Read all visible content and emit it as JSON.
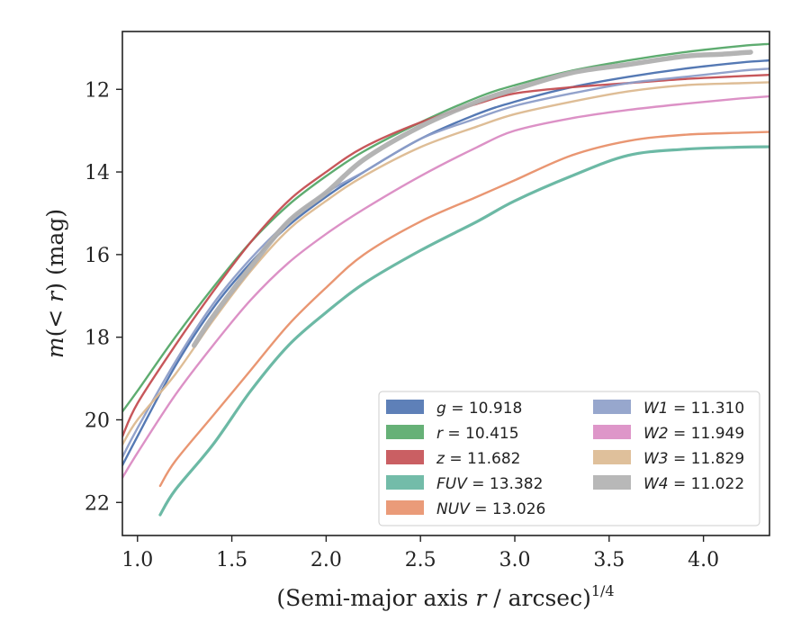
{
  "chart_data": {
    "type": "line",
    "title": "",
    "xlabel": "(Semi-major axis r / arcsec)",
    "xlabel_parts": {
      "prefix": "(Semi-major axis ",
      "var": "r",
      "suffix": " / arcsec)",
      "exponent": "1/4"
    },
    "ylabel": "m(< r) (mag)",
    "ylabel_parts": {
      "prefix": "m",
      "middle": "(< ",
      "var": "r",
      "suffix": ") (mag)"
    },
    "xlim": [
      0.92,
      4.35
    ],
    "ylim": [
      22.8,
      10.6
    ],
    "y_inverted": true,
    "xticks": [
      "1.0",
      "1.5",
      "2.0",
      "2.5",
      "3.0",
      "3.5",
      "4.0"
    ],
    "xtick_values": [
      1.0,
      1.5,
      2.0,
      2.5,
      3.0,
      3.5,
      4.0
    ],
    "yticks": [
      "12",
      "14",
      "16",
      "18",
      "20",
      "22"
    ],
    "ytick_values": [
      12,
      14,
      16,
      18,
      20,
      22
    ],
    "grid": false,
    "legend_position": "lower right",
    "legend_columns": 2,
    "series": [
      {
        "name": "g = 10.918",
        "name_var": "g",
        "name_value": "10.918",
        "color": "#4c72b0",
        "x": [
          0.92,
          1.0,
          1.2,
          1.4,
          1.6,
          1.8,
          2.0,
          2.2,
          2.5,
          2.8,
          3.0,
          3.3,
          3.6,
          3.9,
          4.2,
          4.35
        ],
        "y": [
          21.1,
          20.4,
          18.7,
          17.3,
          16.2,
          15.3,
          14.6,
          14.0,
          13.2,
          12.6,
          12.3,
          11.95,
          11.7,
          11.5,
          11.35,
          11.3
        ]
      },
      {
        "name": "r = 10.415",
        "name_var": "r",
        "name_value": "10.415",
        "color": "#55a868",
        "x": [
          0.92,
          1.0,
          1.2,
          1.4,
          1.6,
          1.8,
          2.0,
          2.2,
          2.5,
          2.8,
          3.0,
          3.3,
          3.6,
          3.9,
          4.2,
          4.35
        ],
        "y": [
          19.8,
          19.3,
          18.0,
          16.8,
          15.7,
          14.8,
          14.1,
          13.5,
          12.8,
          12.2,
          11.9,
          11.55,
          11.3,
          11.1,
          10.95,
          10.9
        ]
      },
      {
        "name": "z = 11.682",
        "name_var": "z",
        "name_value": "11.682",
        "color": "#c44e52",
        "x": [
          0.92,
          1.0,
          1.2,
          1.4,
          1.6,
          1.8,
          2.0,
          2.2,
          2.5,
          2.8,
          3.0,
          3.3,
          3.6,
          3.9,
          4.2,
          4.35
        ],
        "y": [
          20.4,
          19.6,
          18.2,
          16.9,
          15.7,
          14.7,
          14.0,
          13.4,
          12.8,
          12.35,
          12.1,
          11.95,
          11.85,
          11.75,
          11.68,
          11.65
        ]
      },
      {
        "name": "FUV = 13.382",
        "name_var": "FUV",
        "name_value": "13.382",
        "color": "#64b5a0",
        "x": [
          1.12,
          1.2,
          1.4,
          1.6,
          1.8,
          2.0,
          2.2,
          2.5,
          2.8,
          3.0,
          3.3,
          3.6,
          3.9,
          4.2,
          4.35
        ],
        "y": [
          22.3,
          21.7,
          20.6,
          19.3,
          18.2,
          17.4,
          16.7,
          15.9,
          15.2,
          14.7,
          14.1,
          13.6,
          13.45,
          13.4,
          13.39
        ]
      },
      {
        "name": "NUV = 13.026",
        "name_var": "NUV",
        "name_value": "13.026",
        "color": "#e8906a",
        "x": [
          1.12,
          1.2,
          1.4,
          1.6,
          1.8,
          2.0,
          2.2,
          2.5,
          2.8,
          3.0,
          3.3,
          3.6,
          3.9,
          4.2,
          4.35
        ],
        "y": [
          21.6,
          21.0,
          19.9,
          18.8,
          17.7,
          16.8,
          16.0,
          15.2,
          14.6,
          14.2,
          13.6,
          13.25,
          13.1,
          13.05,
          13.03
        ]
      },
      {
        "name": "W1 = 11.310",
        "name_var": "W1",
        "name_value": "11.310",
        "color": "#8c9dc8",
        "x": [
          0.92,
          1.0,
          1.2,
          1.4,
          1.6,
          1.8,
          2.0,
          2.2,
          2.5,
          2.8,
          3.0,
          3.3,
          3.6,
          3.9,
          4.2,
          4.35
        ],
        "y": [
          20.9,
          20.2,
          18.6,
          17.2,
          16.1,
          15.2,
          14.5,
          14.0,
          13.2,
          12.7,
          12.4,
          12.1,
          11.85,
          11.7,
          11.55,
          11.5
        ]
      },
      {
        "name": "W2 = 11.949",
        "name_var": "W2",
        "name_value": "11.949",
        "color": "#da8bc3",
        "x": [
          0.92,
          1.0,
          1.2,
          1.4,
          1.6,
          1.8,
          2.0,
          2.2,
          2.5,
          2.8,
          3.0,
          3.3,
          3.6,
          3.9,
          4.2,
          4.35
        ],
        "y": [
          21.4,
          20.8,
          19.4,
          18.2,
          17.1,
          16.2,
          15.5,
          14.9,
          14.1,
          13.4,
          13.0,
          12.7,
          12.5,
          12.35,
          12.22,
          12.17
        ]
      },
      {
        "name": "W3 = 11.829",
        "name_var": "W3",
        "name_value": "11.829",
        "color": "#dcb990",
        "x": [
          0.92,
          1.0,
          1.2,
          1.4,
          1.6,
          1.8,
          2.0,
          2.2,
          2.5,
          2.8,
          3.0,
          3.3,
          3.6,
          3.9,
          4.2,
          4.35
        ],
        "y": [
          20.6,
          20.0,
          18.9,
          17.6,
          16.4,
          15.4,
          14.7,
          14.1,
          13.4,
          12.9,
          12.6,
          12.3,
          12.05,
          11.9,
          11.85,
          11.83
        ]
      },
      {
        "name": "W4 = 11.022",
        "name_var": "W4",
        "name_value": "11.022",
        "color": "#b0b0b0",
        "x": [
          1.3,
          1.4,
          1.6,
          1.8,
          2.0,
          2.2,
          2.5,
          2.8,
          3.0,
          3.3,
          3.6,
          3.9,
          4.1,
          4.25
        ],
        "y": [
          18.2,
          17.5,
          16.3,
          15.2,
          14.5,
          13.7,
          12.9,
          12.3,
          12.0,
          11.6,
          11.4,
          11.2,
          11.15,
          11.1
        ]
      }
    ]
  }
}
